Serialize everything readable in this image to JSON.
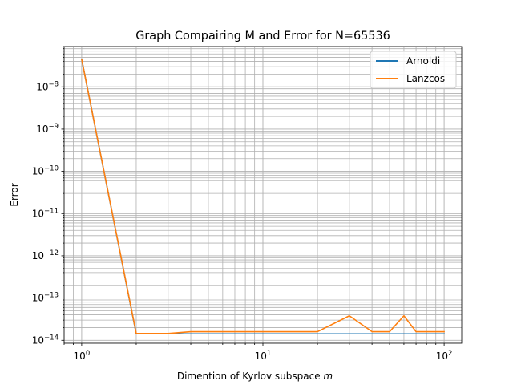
{
  "chart_data": {
    "type": "line",
    "title": "Graph Compairing M and Error for N=65536",
    "xlabel": "Dimention of Kyrlov subspace",
    "xlabel_var": "m",
    "ylabel": "Error",
    "xscale": "log",
    "yscale": "log",
    "xlim": [
      0.8,
      125
    ],
    "ylim": [
      8.5e-15,
      9e-08
    ],
    "grid": "major and minor",
    "legend_position": "top-right",
    "x_ticks": [
      {
        "value": 1,
        "base": "10",
        "exp": "0"
      },
      {
        "value": 10,
        "base": "10",
        "exp": "1"
      },
      {
        "value": 100,
        "base": "10",
        "exp": "2"
      }
    ],
    "y_ticks": [
      {
        "value": 1e-14,
        "base": "10",
        "exp": "−14"
      },
      {
        "value": 1e-13,
        "base": "10",
        "exp": "−13"
      },
      {
        "value": 1e-12,
        "base": "10",
        "exp": "−12"
      },
      {
        "value": 1e-11,
        "base": "10",
        "exp": "−11"
      },
      {
        "value": 1e-10,
        "base": "10",
        "exp": "−10"
      },
      {
        "value": 1e-09,
        "base": "10",
        "exp": "−9"
      },
      {
        "value": 1e-08,
        "base": "10",
        "exp": "−8"
      }
    ],
    "x": [
      1,
      2,
      3,
      4,
      5,
      6,
      7,
      8,
      9,
      10,
      20,
      30,
      40,
      50,
      60,
      70,
      80,
      90,
      100
    ],
    "series": [
      {
        "name": "Arnoldi",
        "color": "#1f77b4",
        "values": [
          4.5e-08,
          1.42e-14,
          1.42e-14,
          1.42e-14,
          1.42e-14,
          1.42e-14,
          1.42e-14,
          1.42e-14,
          1.42e-14,
          1.42e-14,
          1.42e-14,
          1.42e-14,
          1.42e-14,
          1.42e-14,
          1.42e-14,
          1.42e-14,
          1.42e-14,
          1.42e-14,
          1.42e-14
        ]
      },
      {
        "name": "Lanzcos",
        "color": "#ff7f0e",
        "values": [
          4.5e-08,
          1.45e-14,
          1.45e-14,
          1.6e-14,
          1.6e-14,
          1.6e-14,
          1.6e-14,
          1.6e-14,
          1.6e-14,
          1.6e-14,
          1.6e-14,
          3.8e-14,
          1.6e-14,
          1.6e-14,
          3.8e-14,
          1.6e-14,
          1.6e-14,
          1.6e-14,
          1.6e-14
        ]
      }
    ]
  }
}
